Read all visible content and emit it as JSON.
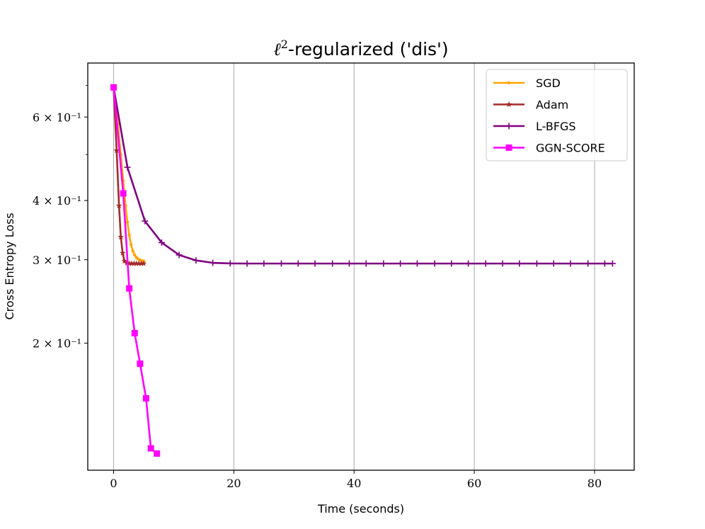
{
  "chart_data": {
    "type": "line",
    "title": "ℓ²-regularized ('dis')",
    "title_parts": {
      "ell": "ℓ",
      "sup": "2",
      "rest": "-regularized ('dis')"
    },
    "xlabel": "Time (seconds)",
    "ylabel": "Cross Entropy Loss",
    "xlim": [
      -4.3,
      86.6
    ],
    "ylim": [
      0.1079,
      0.78
    ],
    "yscale": "log",
    "xticks": [
      0,
      20,
      40,
      60,
      80
    ],
    "xtick_labels": [
      "0",
      "20",
      "40",
      "60",
      "80"
    ],
    "yticks": [
      {
        "value": 0.6,
        "label": "6 × 10⁻¹"
      },
      {
        "value": 0.4,
        "label": "4 × 10⁻¹"
      },
      {
        "value": 0.3,
        "label": "3 × 10⁻¹"
      },
      {
        "value": 0.2,
        "label": "2 × 10⁻¹"
      }
    ],
    "grid": "x-major",
    "legend_position": "upper-right",
    "series": [
      {
        "name": "SGD",
        "color": "#FFA500",
        "marker": "dot",
        "x": [
          0.0,
          0.7,
          1.2,
          1.6,
          2.0,
          2.3,
          2.6,
          2.9,
          3.2,
          3.5,
          3.8,
          4.1,
          4.4,
          4.7,
          5.0
        ],
        "y": [
          0.693,
          0.58,
          0.5,
          0.44,
          0.39,
          0.36,
          0.338,
          0.323,
          0.313,
          0.307,
          0.303,
          0.301,
          0.2995,
          0.2985,
          0.298
        ]
      },
      {
        "name": "Adam",
        "color": "#A52A2A",
        "marker": "star",
        "x": [
          0.0,
          0.5,
          0.9,
          1.2,
          1.5,
          1.8,
          2.2,
          2.6,
          3.0,
          3.4,
          3.8,
          4.2,
          4.6,
          5.0
        ],
        "y": [
          0.693,
          0.51,
          0.39,
          0.335,
          0.31,
          0.298,
          0.295,
          0.2945,
          0.2945,
          0.2945,
          0.2945,
          0.2945,
          0.2945,
          0.2945
        ]
      },
      {
        "name": "L-BFGS",
        "color": "#800080",
        "marker": "plus",
        "x": [
          0.0,
          2.3,
          5.2,
          8.0,
          10.9,
          13.7,
          16.5,
          19.4,
          22.2,
          25.0,
          27.9,
          30.7,
          33.5,
          36.4,
          39.2,
          42.0,
          44.9,
          47.7,
          50.5,
          53.4,
          56.2,
          59.0,
          61.9,
          64.7,
          67.5,
          70.4,
          73.2,
          76.0,
          78.9,
          81.7,
          83.0
        ],
        "y": [
          0.693,
          0.47,
          0.362,
          0.326,
          0.307,
          0.299,
          0.2955,
          0.2947,
          0.2945,
          0.2945,
          0.2945,
          0.2945,
          0.2945,
          0.2945,
          0.2945,
          0.2945,
          0.2945,
          0.2945,
          0.2945,
          0.2945,
          0.2945,
          0.2945,
          0.2945,
          0.2945,
          0.2945,
          0.2945,
          0.2945,
          0.2945,
          0.2945,
          0.2945,
          0.2945
        ]
      },
      {
        "name": "GGN-SCORE",
        "color": "#FF00FF",
        "marker": "square",
        "x": [
          0.0,
          1.6,
          2.6,
          3.5,
          4.4,
          5.4,
          6.2,
          7.2
        ],
        "y": [
          0.693,
          0.414,
          0.261,
          0.21,
          0.181,
          0.153,
          0.12,
          0.117
        ]
      }
    ]
  }
}
